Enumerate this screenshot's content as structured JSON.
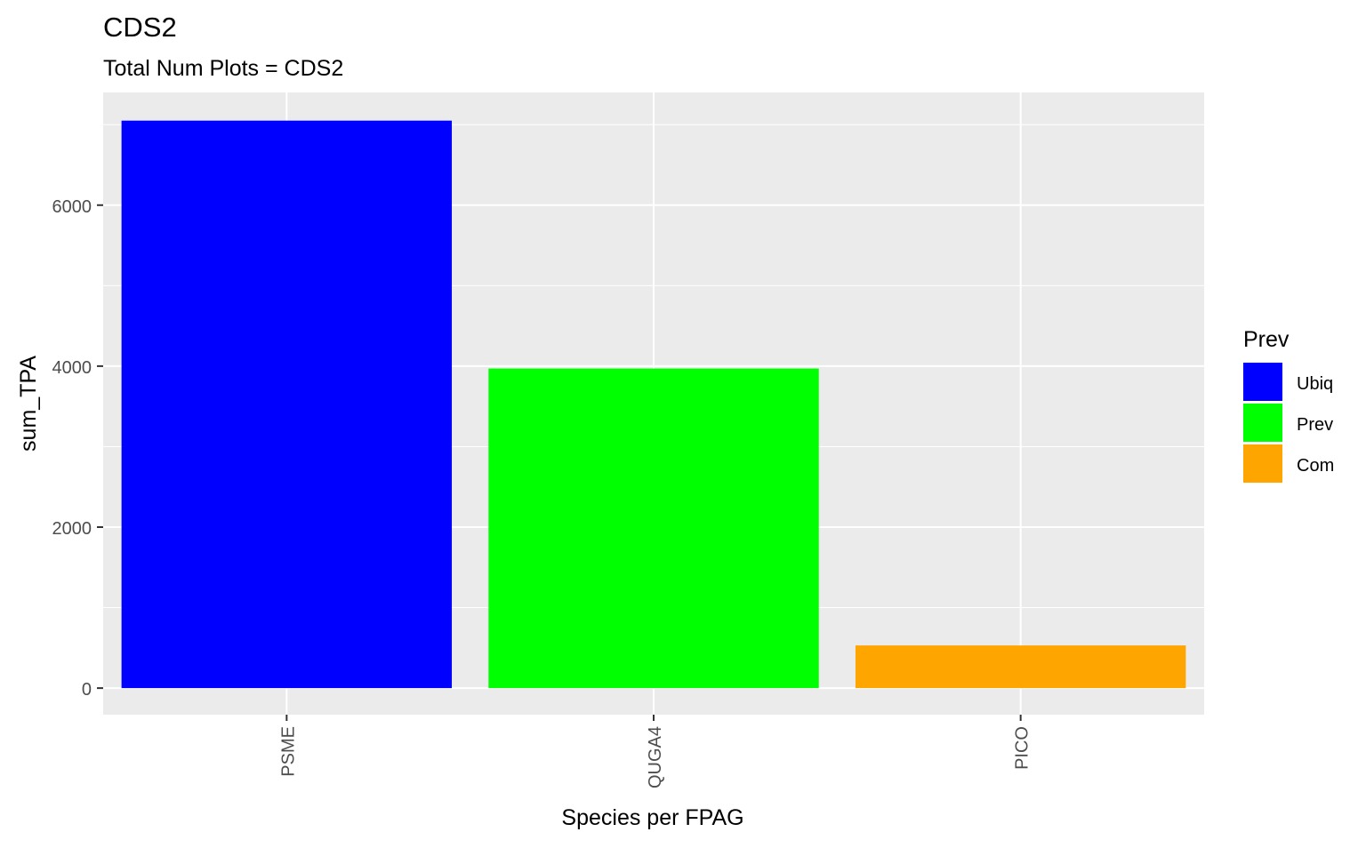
{
  "chart_data": {
    "type": "bar",
    "title": "CDS2",
    "subtitle": "Total Num Plots = CDS2",
    "xlabel": "Species per FPAG",
    "ylabel": "sum_TPA",
    "categories": [
      "PSME",
      "QUGA4",
      "PICO"
    ],
    "values": [
      7050,
      3970,
      530
    ],
    "bar_colors": [
      "#0000FF",
      "#00FF00",
      "#FFA500"
    ],
    "bar_groups": [
      "Ubiq",
      "Prev",
      "Com"
    ],
    "ylim": [
      -330,
      7400
    ],
    "y_ticks": [
      0,
      2000,
      4000,
      6000
    ],
    "y_tick_labels": [
      "0",
      "2000",
      "4000",
      "6000"
    ],
    "grid": true,
    "panel_background": "#EBEBEB",
    "x_tick_label_rotation": "vertical",
    "legend": {
      "title": "Prev",
      "placement": "right",
      "items": [
        {
          "label": "Ubiq",
          "color": "#0000FF"
        },
        {
          "label": "Prev",
          "color": "#00FF00"
        },
        {
          "label": "Com",
          "color": "#FFA500"
        }
      ]
    }
  }
}
